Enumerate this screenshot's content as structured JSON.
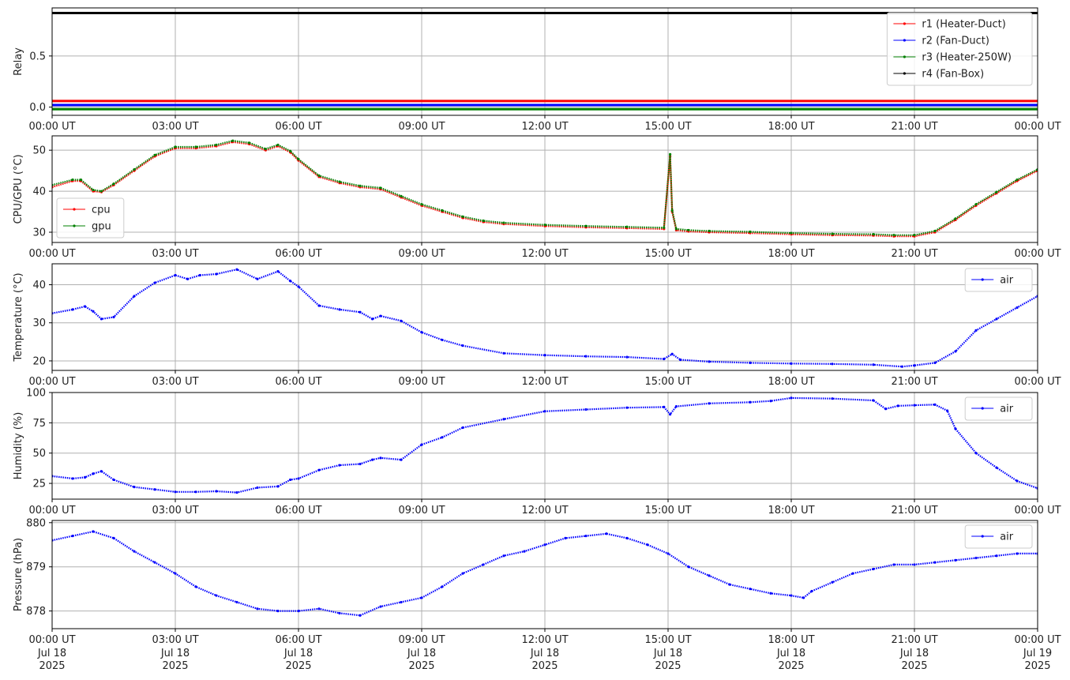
{
  "chart_data": [
    {
      "type": "line",
      "ylabel": "Relay",
      "x_ticks": [
        "00:00 UT",
        "03:00 UT",
        "06:00 UT",
        "09:00 UT",
        "12:00 UT",
        "15:00 UT",
        "18:00 UT",
        "21:00 UT",
        "00:00 UT"
      ],
      "y_ticks": [
        "0.0",
        "0.5"
      ],
      "ylim": [
        -0.08,
        0.97
      ],
      "grid": true,
      "legend_position": "top-right",
      "series": [
        {
          "name": "r1 (Heater-Duct)",
          "color": "#ff0000",
          "x": [
            0,
            24
          ],
          "values": [
            0.06,
            0.06
          ]
        },
        {
          "name": "r2 (Fan-Duct)",
          "color": "#0000ff",
          "x": [
            0,
            24
          ],
          "values": [
            0.02,
            0.02
          ]
        },
        {
          "name": "r3 (Heater-250W)",
          "color": "#008000",
          "x": [
            0,
            24
          ],
          "values": [
            -0.02,
            -0.02
          ]
        },
        {
          "name": "r4 (Fan-Box)",
          "color": "#000000",
          "x": [
            0,
            24
          ],
          "values": [
            0.92,
            0.92
          ]
        }
      ]
    },
    {
      "type": "line",
      "ylabel": "CPU/GPU (°C)",
      "x_ticks": [
        "00:00 UT",
        "03:00 UT",
        "06:00 UT",
        "09:00 UT",
        "12:00 UT",
        "15:00 UT",
        "18:00 UT",
        "21:00 UT",
        "00:00 UT"
      ],
      "y_ticks": [
        "30",
        "40",
        "50"
      ],
      "ylim": [
        27.5,
        53.5
      ],
      "grid": true,
      "legend_position": "bottom-left",
      "series": [
        {
          "name": "cpu",
          "color": "#ff0000",
          "x": [
            0,
            0.5,
            0.7,
            1.0,
            1.2,
            1.5,
            2.0,
            2.5,
            3.0,
            3.5,
            4.0,
            4.4,
            4.8,
            5.2,
            5.5,
            5.8,
            6.0,
            6.5,
            7.0,
            7.5,
            8.0,
            8.5,
            9.0,
            9.5,
            10.0,
            10.5,
            11.0,
            12.0,
            13.0,
            14.0,
            14.9,
            15.05,
            15.1,
            15.2,
            15.5,
            16.0,
            17.0,
            18.0,
            19.0,
            20.0,
            20.5,
            21.0,
            21.5,
            22.0,
            22.5,
            23.0,
            23.5,
            24.0
          ],
          "values": [
            41,
            42.5,
            42.5,
            40,
            39.8,
            41.5,
            45,
            48.5,
            50.5,
            50.5,
            51,
            52,
            51.5,
            50,
            51,
            49.5,
            47.5,
            43.5,
            42,
            41,
            40.5,
            38.5,
            36.5,
            35,
            33.5,
            32.5,
            32,
            31.5,
            31.2,
            31,
            30.8,
            48.5,
            35,
            30.5,
            30.2,
            30,
            29.8,
            29.5,
            29.3,
            29.2,
            29,
            29,
            30,
            33,
            36.5,
            39.5,
            42.5,
            45
          ]
        },
        {
          "name": "gpu",
          "color": "#008000",
          "x": [
            0,
            0.5,
            0.7,
            1.0,
            1.2,
            1.5,
            2.0,
            2.5,
            3.0,
            3.5,
            4.0,
            4.4,
            4.8,
            5.2,
            5.5,
            5.8,
            6.0,
            6.5,
            7.0,
            7.5,
            8.0,
            8.5,
            9.0,
            9.5,
            10.0,
            10.5,
            11.0,
            12.0,
            13.0,
            14.0,
            14.9,
            15.05,
            15.1,
            15.2,
            15.5,
            16.0,
            17.0,
            18.0,
            19.0,
            20.0,
            20.5,
            21.0,
            21.5,
            22.0,
            22.5,
            23.0,
            23.5,
            24.0
          ],
          "values": [
            41.5,
            42.8,
            42.8,
            40.3,
            40,
            41.8,
            45.3,
            48.8,
            50.8,
            50.8,
            51.3,
            52.3,
            51.8,
            50.3,
            51.3,
            49.8,
            47.8,
            43.8,
            42.3,
            41.3,
            40.8,
            38.8,
            36.8,
            35.3,
            33.8,
            32.8,
            32.3,
            31.8,
            31.5,
            31.3,
            31.1,
            49,
            35.3,
            30.8,
            30.5,
            30.3,
            30.1,
            29.8,
            29.6,
            29.5,
            29.3,
            29.3,
            30.3,
            33.3,
            36.8,
            39.8,
            42.8,
            45.3
          ]
        }
      ]
    },
    {
      "type": "line",
      "ylabel": "Temperature (°C)",
      "x_ticks": [
        "00:00 UT",
        "03:00 UT",
        "06:00 UT",
        "09:00 UT",
        "12:00 UT",
        "15:00 UT",
        "18:00 UT",
        "21:00 UT",
        "00:00 UT"
      ],
      "y_ticks": [
        "20",
        "30",
        "40"
      ],
      "ylim": [
        17.5,
        45.5
      ],
      "grid": true,
      "legend_position": "top-right",
      "series": [
        {
          "name": "air",
          "color": "#0000ff",
          "x": [
            0,
            0.5,
            0.8,
            1.0,
            1.2,
            1.5,
            2.0,
            2.5,
            3.0,
            3.3,
            3.6,
            4.0,
            4.5,
            5.0,
            5.5,
            5.8,
            6.0,
            6.5,
            7.0,
            7.5,
            7.8,
            8.0,
            8.5,
            9.0,
            9.5,
            10.0,
            11.0,
            12.0,
            13.0,
            14.0,
            14.9,
            15.1,
            15.3,
            16.0,
            17.0,
            18.0,
            19.0,
            20.0,
            20.7,
            21.0,
            21.5,
            22.0,
            22.5,
            23.0,
            23.5,
            24.0
          ],
          "values": [
            32.5,
            33.5,
            34.3,
            33,
            31,
            31.5,
            37,
            40.5,
            42.5,
            41.5,
            42.5,
            42.8,
            44,
            41.5,
            43.5,
            41,
            39.5,
            34.5,
            33.5,
            32.8,
            31,
            31.8,
            30.5,
            27.5,
            25.5,
            24,
            22,
            21.5,
            21.2,
            21,
            20.5,
            21.8,
            20.3,
            19.8,
            19.5,
            19.3,
            19.2,
            19,
            18.5,
            18.8,
            19.5,
            22.5,
            28,
            31,
            34,
            37
          ]
        }
      ]
    },
    {
      "type": "line",
      "ylabel": "Humidity (%)",
      "x_ticks": [
        "00:00 UT",
        "03:00 UT",
        "06:00 UT",
        "09:00 UT",
        "12:00 UT",
        "15:00 UT",
        "18:00 UT",
        "21:00 UT",
        "00:00 UT"
      ],
      "y_ticks": [
        "25",
        "50",
        "75",
        "100"
      ],
      "ylim": [
        12,
        100
      ],
      "grid": true,
      "legend_position": "top-right",
      "series": [
        {
          "name": "air",
          "color": "#0000ff",
          "x": [
            0,
            0.5,
            0.8,
            1.0,
            1.2,
            1.5,
            2.0,
            2.5,
            3.0,
            3.5,
            4.0,
            4.5,
            5.0,
            5.5,
            5.8,
            6.0,
            6.5,
            7.0,
            7.5,
            7.8,
            8.0,
            8.5,
            9.0,
            9.5,
            10.0,
            11.0,
            12.0,
            13.0,
            14.0,
            14.9,
            15.05,
            15.2,
            16.0,
            17.0,
            17.5,
            18.0,
            19.0,
            20.0,
            20.3,
            20.6,
            21.0,
            21.5,
            21.8,
            22.0,
            22.5,
            23.0,
            23.5,
            24.0
          ],
          "values": [
            31,
            29,
            30,
            33,
            35,
            28,
            22,
            20,
            18,
            18,
            18.5,
            17.5,
            21.5,
            22.5,
            28,
            29,
            36,
            40,
            41,
            44.5,
            46,
            44.5,
            57,
            63,
            71,
            78,
            84.5,
            86,
            87.5,
            88,
            82,
            88.5,
            91,
            92,
            93,
            95.5,
            95,
            93.5,
            86.5,
            89,
            89.5,
            90,
            85,
            70,
            50,
            38,
            27,
            21
          ]
        }
      ]
    },
    {
      "type": "line",
      "ylabel": "Pressure (hPa)",
      "x_ticks": [
        "00:00 UT",
        "03:00 UT",
        "06:00 UT",
        "09:00 UT",
        "12:00 UT",
        "15:00 UT",
        "18:00 UT",
        "21:00 UT",
        "00:00 UT"
      ],
      "x_ticks_date": [
        "Jul 18\n2025",
        "Jul 18\n2025",
        "Jul 18\n2025",
        "Jul 18\n2025",
        "Jul 18\n2025",
        "Jul 18\n2025",
        "Jul 18\n2025",
        "Jul 18\n2025",
        "Jul 19\n2025"
      ],
      "y_ticks": [
        "878",
        "879",
        "880"
      ],
      "ylim": [
        877.6,
        880.05
      ],
      "grid": true,
      "legend_position": "top-right",
      "series": [
        {
          "name": "air",
          "color": "#0000ff",
          "x": [
            0,
            0.5,
            1.0,
            1.5,
            2.0,
            2.5,
            3.0,
            3.5,
            4.0,
            4.5,
            5.0,
            5.5,
            6.0,
            6.5,
            7.0,
            7.5,
            8.0,
            8.5,
            9.0,
            9.5,
            10.0,
            10.5,
            11.0,
            11.5,
            12.0,
            12.5,
            13.0,
            13.5,
            14.0,
            14.5,
            15.0,
            15.5,
            16.0,
            16.5,
            17.0,
            17.5,
            18.0,
            18.3,
            18.5,
            19.0,
            19.5,
            20.0,
            20.5,
            21.0,
            21.5,
            22.0,
            22.5,
            23.0,
            23.5,
            24.0
          ],
          "values": [
            879.6,
            879.7,
            879.8,
            879.65,
            879.35,
            879.1,
            878.85,
            878.55,
            878.35,
            878.2,
            878.05,
            878.0,
            878.0,
            878.05,
            877.95,
            877.9,
            878.1,
            878.2,
            878.3,
            878.55,
            878.85,
            879.05,
            879.25,
            879.35,
            879.5,
            879.65,
            879.7,
            879.75,
            879.65,
            879.5,
            879.3,
            879.0,
            878.8,
            878.6,
            878.5,
            878.4,
            878.35,
            878.3,
            878.45,
            878.65,
            878.85,
            878.95,
            879.05,
            879.05,
            879.1,
            879.15,
            879.2,
            879.25,
            879.3,
            879.3
          ]
        }
      ]
    }
  ]
}
